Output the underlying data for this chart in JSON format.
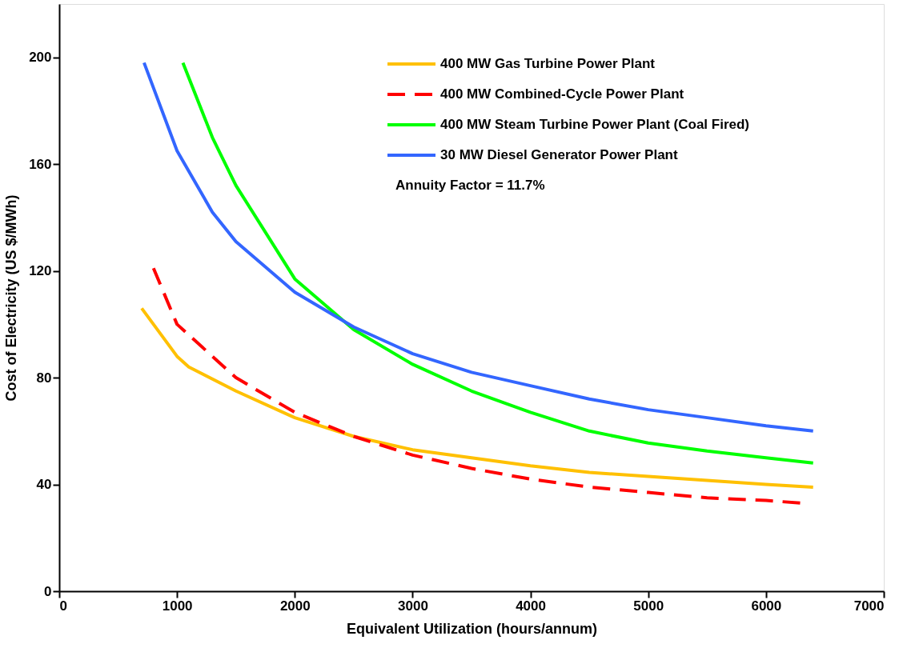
{
  "chart_data": {
    "type": "line",
    "xlabel": "Equivalent Utilization (hours/annum)",
    "ylabel": "Cost of Electricity (US $/MWh)",
    "xlim": [
      0,
      7000
    ],
    "xticks": [
      0,
      1000,
      2000,
      3000,
      4000,
      5000,
      6000,
      7000
    ],
    "ylim": [
      0,
      220
    ],
    "yticks": [
      0,
      40,
      80,
      120,
      160,
      200
    ],
    "grid": false,
    "legend": "top right",
    "marker": "none",
    "annotations": [
      "Annuity Factor = 11.7%"
    ],
    "series": [
      {
        "name": "400 MW Gas Turbine Power Plant",
        "color": "#ffc000",
        "line_style": "solid",
        "x": [
          700,
          1000,
          1100,
          1500,
          2000,
          2500,
          3000,
          3500,
          4000,
          4500,
          5000,
          5500,
          6000,
          6400
        ],
        "values": [
          106,
          88,
          84,
          75,
          65,
          58,
          53,
          50,
          47,
          44.5,
          43,
          41.5,
          40,
          39
        ]
      },
      {
        "name": "400 MW Combined-Cycle Power Plant",
        "color": "#ff0000",
        "line_style": "dashed",
        "x": [
          800,
          1000,
          1500,
          2000,
          2500,
          3000,
          3500,
          4000,
          4500,
          5000,
          5500,
          6000,
          6300
        ],
        "values": [
          121,
          100,
          80,
          67,
          58,
          51,
          46,
          42,
          39,
          37,
          35,
          34,
          33
        ]
      },
      {
        "name": "400 MW Steam Turbine Power Plant (Coal Fired)",
        "color": "#00ff00",
        "line_style": "solid",
        "x": [
          1050,
          1300,
          1500,
          2000,
          2500,
          3000,
          3500,
          4000,
          4500,
          5000,
          5500,
          6000,
          6400
        ],
        "values": [
          198,
          170,
          152,
          117,
          98,
          85,
          75,
          67,
          60,
          55.5,
          52.5,
          50,
          48
        ]
      },
      {
        "name": "30 MW Diesel Generator Power Plant",
        "color": "#3366ff",
        "line_style": "solid",
        "x": [
          720,
          1000,
          1300,
          1500,
          2000,
          2500,
          3000,
          3500,
          4000,
          4500,
          5000,
          5500,
          6000,
          6400
        ],
        "values": [
          198,
          165,
          142,
          131,
          112,
          99,
          89,
          82,
          77,
          72,
          68,
          65,
          62,
          60
        ]
      }
    ]
  }
}
